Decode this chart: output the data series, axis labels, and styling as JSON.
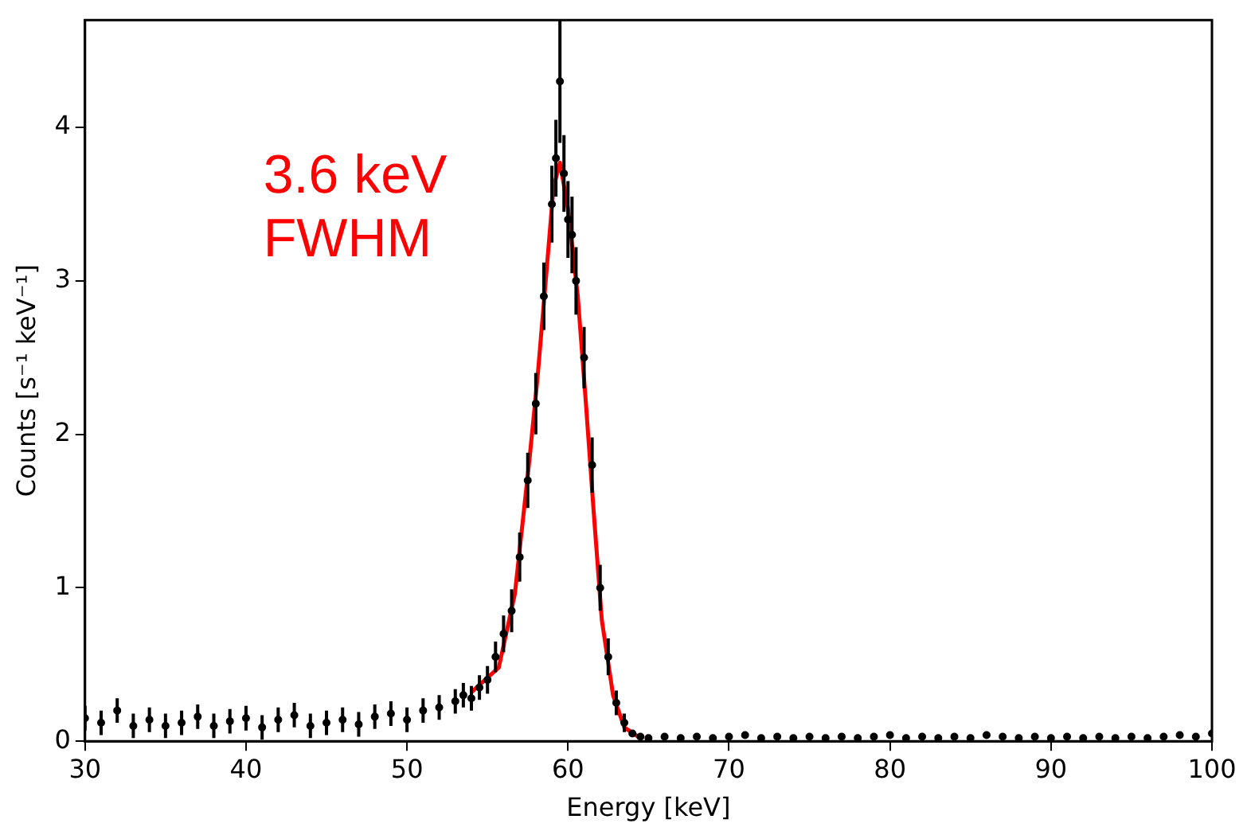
{
  "chart_data": {
    "type": "scatter",
    "xlabel": "Energy [keV]",
    "ylabel": "Counts [s⁻¹ keV⁻¹]",
    "xlim": [
      30,
      100
    ],
    "xticks": [
      30,
      40,
      50,
      60,
      70,
      80,
      90,
      100
    ],
    "ylim": [
      0,
      4.7
    ],
    "yticks": [
      0,
      1,
      2,
      3,
      4
    ],
    "grid": false,
    "legend": false,
    "annotations": [
      "3.6 keV FWHM"
    ],
    "series": [
      {
        "type": "scatter",
        "color": "#000000",
        "marker": "circle",
        "x": [
          30,
          31,
          32,
          33,
          34,
          35,
          36,
          37,
          38,
          39,
          40,
          41,
          42,
          43,
          44,
          45,
          46,
          47,
          48,
          49,
          50,
          51,
          52,
          53,
          53.5,
          54,
          54.5,
          55,
          55.5,
          56,
          56.5,
          57,
          57.5,
          58,
          58.5,
          59,
          59.25,
          59.5,
          59.75,
          60,
          60.25,
          60.5,
          61,
          61.5,
          62,
          62.5,
          63,
          63.5,
          64,
          64.5,
          65,
          66,
          67,
          68,
          69,
          70,
          71,
          72,
          73,
          74,
          75,
          76,
          77,
          78,
          79,
          80,
          81,
          82,
          83,
          84,
          85,
          86,
          87,
          88,
          89,
          90,
          91,
          92,
          93,
          94,
          95,
          96,
          97,
          98,
          99,
          100
        ],
        "values": [
          0.15,
          0.12,
          0.2,
          0.1,
          0.14,
          0.1,
          0.12,
          0.16,
          0.1,
          0.13,
          0.15,
          0.09,
          0.14,
          0.17,
          0.1,
          0.12,
          0.14,
          0.11,
          0.16,
          0.18,
          0.14,
          0.2,
          0.22,
          0.26,
          0.3,
          0.28,
          0.35,
          0.4,
          0.55,
          0.7,
          0.85,
          1.2,
          1.7,
          2.2,
          2.9,
          3.5,
          3.8,
          4.3,
          3.7,
          3.4,
          3.3,
          3.0,
          2.5,
          1.8,
          1.0,
          0.55,
          0.25,
          0.12,
          0.05,
          0.03,
          0.02,
          0.03,
          0.02,
          0.03,
          0.02,
          0.03,
          0.04,
          0.02,
          0.03,
          0.02,
          0.03,
          0.02,
          0.03,
          0.02,
          0.03,
          0.04,
          0.02,
          0.03,
          0.02,
          0.03,
          0.02,
          0.04,
          0.03,
          0.02,
          0.03,
          0.02,
          0.03,
          0.02,
          0.03,
          0.02,
          0.03,
          0.02,
          0.03,
          0.04,
          0.03,
          0.05
        ],
        "errors": [
          0.08,
          0.08,
          0.08,
          0.08,
          0.08,
          0.08,
          0.08,
          0.08,
          0.08,
          0.08,
          0.08,
          0.08,
          0.08,
          0.08,
          0.08,
          0.08,
          0.08,
          0.08,
          0.08,
          0.08,
          0.08,
          0.08,
          0.08,
          0.08,
          0.08,
          0.08,
          0.08,
          0.09,
          0.1,
          0.12,
          0.14,
          0.16,
          0.18,
          0.2,
          0.22,
          0.25,
          0.25,
          0.4,
          0.25,
          0.25,
          0.25,
          0.22,
          0.2,
          0.18,
          0.15,
          0.12,
          0.08,
          0.06,
          null,
          null,
          null,
          null,
          null,
          null,
          null,
          null,
          null,
          null,
          null,
          null,
          null,
          null,
          null,
          null,
          null,
          null,
          null,
          null,
          null,
          null,
          null,
          null,
          null,
          null,
          null,
          null,
          null,
          null,
          null,
          null,
          null,
          null,
          null,
          null,
          null,
          null
        ]
      },
      {
        "type": "line",
        "color": "#ff0000",
        "x": [
          54.0,
          55.7,
          56.7,
          57.6,
          58.1,
          58.6,
          59.1,
          59.5,
          60.0,
          60.6,
          61.1,
          61.6,
          62.1,
          62.8,
          63.5,
          64.5
        ],
        "values": [
          0.32,
          0.48,
          0.96,
          1.83,
          2.36,
          2.98,
          3.61,
          3.77,
          3.47,
          2.91,
          2.22,
          1.49,
          0.79,
          0.3,
          0.09,
          0.02
        ]
      }
    ]
  }
}
